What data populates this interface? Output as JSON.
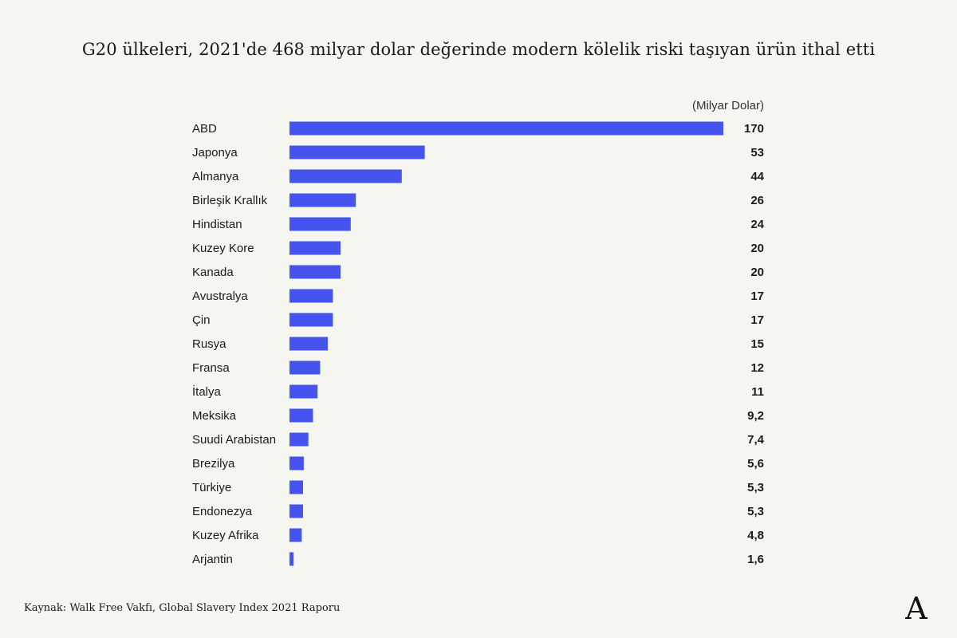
{
  "title": "G20 ülkeleri, 2021'de 468 milyar dolar değerinde modern kölelik riski taşıyan ürün ithal etti",
  "source": "Kaynak: Walk Free Vakfı, Global Slavery Index 2021 Raporu",
  "logo_letter": "A",
  "colors": {
    "bar": "#4654ef",
    "background": "#f6f6f1",
    "text": "#1a1a1a"
  },
  "chart_data": {
    "type": "bar",
    "orientation": "horizontal",
    "unit_label": "(Milyar Dolar)",
    "categories": [
      "ABD",
      "Japonya",
      "Almanya",
      "Birleşik Krallık",
      "Hindistan",
      "Kuzey Kore",
      "Kanada",
      "Avustralya",
      "Çin",
      "Rusya",
      "Fransa",
      "İtalya",
      "Meksika",
      "Suudi Arabistan",
      "Brezilya",
      "Türkiye",
      "Endonezya",
      "Kuzey Afrika",
      "Arjantin"
    ],
    "values": [
      170,
      53,
      44,
      26,
      24,
      20,
      20,
      17,
      17,
      15,
      12,
      11,
      9.2,
      7.4,
      5.6,
      5.3,
      5.3,
      4.8,
      1.6
    ],
    "value_labels": [
      "170",
      "53",
      "44",
      "26",
      "24",
      "20",
      "20",
      "17",
      "17",
      "15",
      "12",
      "11",
      "9,2",
      "7,4",
      "5,6",
      "5,3",
      "5,3",
      "4,8",
      "1,6"
    ],
    "xlim": [
      0,
      170
    ],
    "grid": false,
    "legend": "none"
  }
}
